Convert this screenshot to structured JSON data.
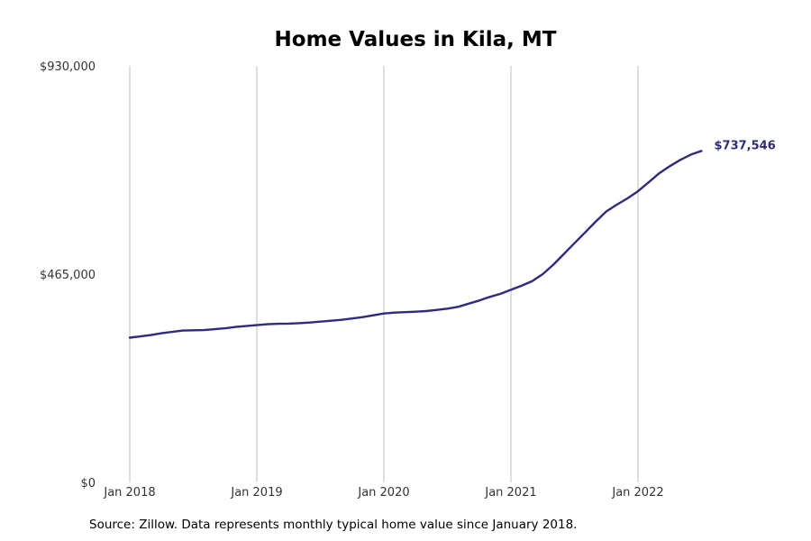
{
  "chart_data": {
    "type": "line",
    "title": "Home Values in Kila, MT",
    "xlabel": "",
    "ylabel": "",
    "x_ticks": [
      "Jan 2018",
      "Jan 2019",
      "Jan 2020",
      "Jan 2021",
      "Jan 2022"
    ],
    "y_ticks": [
      "$0",
      "$465,000",
      "$930,000"
    ],
    "ylim": [
      0,
      930000
    ],
    "xlim": [
      "2018-01",
      "2022-07"
    ],
    "grid": "vertical",
    "line_color": "#2e2a82",
    "end_label": "$737,546",
    "series": [
      {
        "x": [
          "2018-01",
          "2018-02",
          "2018-03",
          "2018-04",
          "2018-05",
          "2018-06",
          "2018-07",
          "2018-08",
          "2018-09",
          "2018-10",
          "2018-11",
          "2018-12",
          "2019-01",
          "2019-02",
          "2019-03",
          "2019-04",
          "2019-05",
          "2019-06",
          "2019-07",
          "2019-08",
          "2019-09",
          "2019-10",
          "2019-11",
          "2019-12",
          "2020-01",
          "2020-02",
          "2020-03",
          "2020-04",
          "2020-05",
          "2020-06",
          "2020-07",
          "2020-08",
          "2020-09",
          "2020-10",
          "2020-11",
          "2020-12",
          "2021-01",
          "2021-02",
          "2021-03",
          "2021-04",
          "2021-05",
          "2021-06",
          "2021-07",
          "2021-08",
          "2021-09",
          "2021-10",
          "2021-11",
          "2021-12",
          "2022-01",
          "2022-02",
          "2022-03",
          "2022-04",
          "2022-05",
          "2022-06",
          "2022-07"
        ],
        "values": [
          323000,
          326000,
          329000,
          333000,
          336000,
          339000,
          339500,
          340000,
          342000,
          344000,
          347000,
          349000,
          351000,
          353000,
          354000,
          354500,
          355500,
          357000,
          359000,
          361000,
          363000,
          366000,
          369000,
          373000,
          377000,
          379000,
          380000,
          381000,
          382500,
          385000,
          388000,
          392000,
          399000,
          406000,
          414000,
          421000,
          430000,
          439000,
          449000,
          465000,
          486000,
          510000,
          534000,
          558000,
          582000,
          605000,
          620000,
          634000,
          650000,
          670000,
          690000,
          706000,
          720000,
          732000,
          740000
        ]
      }
    ]
  },
  "source_text": "Source: Zillow. Data represents monthly typical home value since January 2018."
}
